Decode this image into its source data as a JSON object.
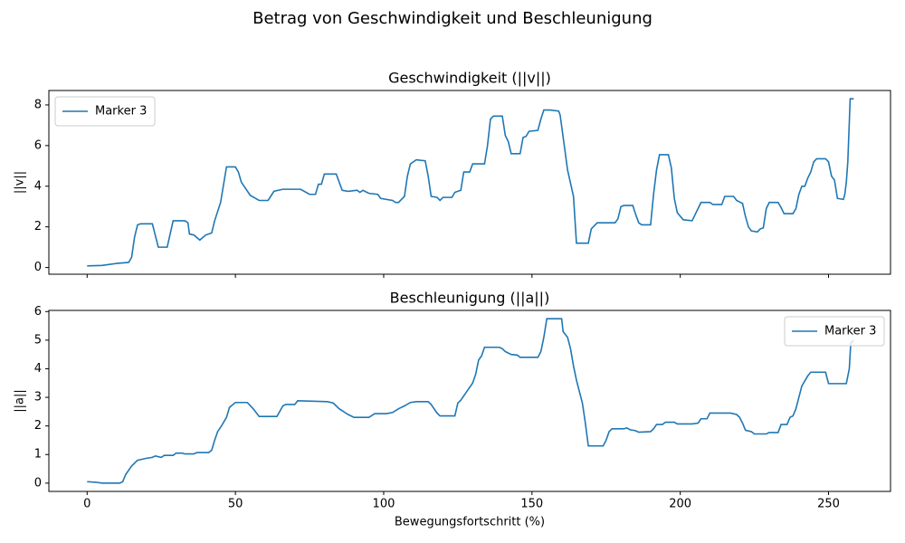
{
  "title": "Betrag von Geschwindigkeit und Beschleunigung",
  "chart_data": [
    {
      "type": "line",
      "title": "Geschwindigkeit (||v||)",
      "y_label": "||v||",
      "xlim": [
        -12.9,
        270.9
      ],
      "xticks": [
        0,
        50,
        100,
        150,
        200,
        250
      ],
      "ylim": [
        -0.33,
        8.71
      ],
      "yticks": [
        0,
        2,
        4,
        6,
        8
      ],
      "legend": "upper left",
      "x": [
        0,
        5,
        10,
        14,
        15,
        16,
        17,
        18,
        22,
        24,
        27,
        29,
        33,
        34,
        34.5,
        36,
        38,
        40,
        42,
        43,
        45,
        47,
        50,
        51,
        52,
        55,
        58,
        61,
        63,
        66,
        72,
        75,
        77,
        78,
        79,
        80,
        84,
        86,
        88,
        91,
        92,
        93,
        95,
        98,
        99,
        103,
        104,
        105,
        107,
        108,
        109,
        111,
        114,
        115,
        116,
        118,
        119,
        120,
        123,
        124,
        126,
        127,
        129,
        130,
        131,
        134,
        135,
        136,
        137,
        140,
        141,
        142,
        143,
        146,
        147,
        148,
        149,
        152,
        153,
        154,
        156,
        159,
        159.5,
        162,
        164,
        165,
        169,
        170,
        172,
        178,
        179,
        180,
        181,
        184,
        185,
        186,
        187,
        190,
        191,
        192,
        193,
        196,
        197,
        198,
        199,
        201,
        204,
        205,
        207,
        210,
        211,
        214,
        215,
        218,
        219,
        221,
        222,
        223,
        224,
        226,
        227,
        228,
        229,
        230,
        233,
        234,
        235,
        238,
        239,
        240,
        241,
        242,
        243,
        244,
        245,
        246,
        249,
        250,
        251,
        252,
        253,
        255,
        255.5,
        256,
        256.5,
        257.3,
        258.5
      ],
      "series": [
        {
          "name": "Marker 3",
          "color": "#1f77b4",
          "values": [
            0.08,
            0.1,
            0.2,
            0.25,
            0.5,
            1.5,
            2.1,
            2.15,
            2.15,
            1.0,
            1.0,
            2.3,
            2.3,
            2.2,
            1.65,
            1.6,
            1.35,
            1.6,
            1.7,
            2.3,
            3.2,
            4.95,
            4.95,
            4.7,
            4.2,
            3.55,
            3.3,
            3.3,
            3.75,
            3.85,
            3.85,
            3.6,
            3.6,
            4.1,
            4.1,
            4.6,
            4.6,
            3.8,
            3.75,
            3.8,
            3.7,
            3.8,
            3.65,
            3.6,
            3.4,
            3.3,
            3.2,
            3.2,
            3.5,
            4.5,
            5.1,
            5.3,
            5.25,
            4.5,
            3.5,
            3.45,
            3.3,
            3.45,
            3.45,
            3.7,
            3.8,
            4.7,
            4.7,
            5.1,
            5.1,
            5.1,
            6.0,
            7.3,
            7.45,
            7.45,
            6.5,
            6.2,
            5.6,
            5.6,
            6.4,
            6.45,
            6.7,
            6.75,
            7.3,
            7.75,
            7.75,
            7.7,
            7.5,
            4.8,
            3.5,
            1.2,
            1.2,
            1.9,
            2.2,
            2.2,
            2.4,
            3.0,
            3.05,
            3.05,
            2.6,
            2.2,
            2.1,
            2.1,
            3.6,
            4.8,
            5.55,
            5.55,
            4.9,
            3.4,
            2.7,
            2.35,
            2.3,
            2.6,
            3.2,
            3.2,
            3.1,
            3.1,
            3.5,
            3.5,
            3.3,
            3.15,
            2.5,
            2.0,
            1.8,
            1.75,
            1.9,
            1.95,
            2.9,
            3.2,
            3.2,
            2.95,
            2.65,
            2.65,
            2.9,
            3.6,
            4.0,
            4.0,
            4.4,
            4.7,
            5.2,
            5.35,
            5.35,
            5.2,
            4.5,
            4.3,
            3.4,
            3.35,
            3.6,
            4.2,
            5.2,
            8.3,
            8.3
          ]
        }
      ]
    },
    {
      "type": "line",
      "title": "Beschleunigung (||a||)",
      "y_label": "||a||",
      "x_label": "Bewegungsfortschritt (%)",
      "xlim": [
        -12.9,
        270.9
      ],
      "xticks": [
        0,
        50,
        100,
        150,
        200,
        250
      ],
      "ylim": [
        -0.29,
        6.04
      ],
      "yticks": [
        0,
        1,
        2,
        3,
        4,
        5,
        6
      ],
      "legend": "upper right",
      "x": [
        0,
        3,
        5,
        11,
        12,
        13,
        15,
        17,
        20,
        22,
        23,
        25,
        26,
        29,
        30,
        32,
        33,
        36,
        37,
        41,
        42,
        43,
        44,
        45,
        47,
        48,
        50,
        54,
        56,
        58,
        64,
        66,
        67,
        70,
        71,
        81,
        83,
        85,
        88,
        90,
        95,
        97,
        101,
        103,
        105,
        107,
        109,
        111,
        115,
        116,
        118,
        119,
        124,
        125,
        126,
        128,
        130,
        131,
        132,
        133,
        134,
        139,
        140,
        141,
        143,
        145,
        146,
        152,
        153,
        154,
        155,
        160,
        160.5,
        162,
        163,
        164,
        165,
        167,
        168,
        169,
        174,
        175,
        176,
        177,
        181,
        182,
        183,
        185,
        186,
        190,
        191,
        192,
        194,
        195,
        198,
        199,
        204,
        206,
        207,
        209,
        210,
        217,
        219,
        220,
        221,
        222,
        224,
        225,
        229,
        230,
        233,
        234,
        236,
        237,
        238,
        239,
        240,
        241,
        243,
        244,
        249,
        250,
        256,
        257,
        257.5,
        258.5
      ],
      "series": [
        {
          "name": "Marker 3",
          "color": "#1f77b4",
          "values": [
            0.05,
            0.03,
            0.0,
            0.0,
            0.05,
            0.3,
            0.6,
            0.8,
            0.87,
            0.9,
            0.95,
            0.9,
            0.97,
            0.97,
            1.05,
            1.05,
            1.02,
            1.02,
            1.07,
            1.07,
            1.15,
            1.5,
            1.8,
            1.95,
            2.3,
            2.65,
            2.82,
            2.82,
            2.6,
            2.33,
            2.33,
            2.7,
            2.75,
            2.75,
            2.88,
            2.85,
            2.8,
            2.6,
            2.4,
            2.3,
            2.3,
            2.43,
            2.43,
            2.47,
            2.6,
            2.7,
            2.82,
            2.85,
            2.85,
            2.75,
            2.45,
            2.35,
            2.35,
            2.8,
            2.9,
            3.2,
            3.5,
            3.8,
            4.3,
            4.45,
            4.75,
            4.75,
            4.7,
            4.6,
            4.5,
            4.48,
            4.4,
            4.4,
            4.6,
            5.1,
            5.75,
            5.75,
            5.3,
            5.1,
            4.7,
            4.1,
            3.6,
            2.8,
            2.1,
            1.3,
            1.3,
            1.5,
            1.8,
            1.9,
            1.9,
            1.93,
            1.87,
            1.83,
            1.78,
            1.8,
            1.9,
            2.05,
            2.05,
            2.13,
            2.13,
            2.07,
            2.07,
            2.1,
            2.25,
            2.25,
            2.45,
            2.45,
            2.4,
            2.3,
            2.1,
            1.85,
            1.8,
            1.72,
            1.72,
            1.77,
            1.77,
            2.05,
            2.05,
            2.3,
            2.35,
            2.6,
            3.0,
            3.4,
            3.75,
            3.88,
            3.88,
            3.48,
            3.48,
            4.0,
            4.9,
            5.0
          ]
        }
      ]
    }
  ]
}
